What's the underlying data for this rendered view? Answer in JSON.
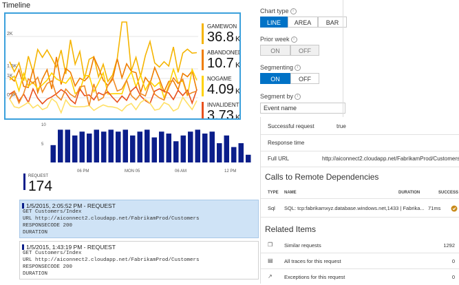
{
  "timeline": {
    "title": "Timeline",
    "y_ticks": [
      "2K",
      "1.5K",
      "1K",
      "0.5K"
    ],
    "legend": [
      {
        "name": "GAMEWON",
        "value": "36.8",
        "unit": "K",
        "color": "#f5b400"
      },
      {
        "name": "ABANDONED",
        "value": "10.7",
        "unit": "K",
        "color": "#ef7d00"
      },
      {
        "name": "NOGAME",
        "value": "4.09",
        "unit": "K",
        "color": "#ffd200"
      },
      {
        "name": "INVALIDENTR",
        "value": "3.73",
        "unit": "K",
        "color": "#e8501d"
      }
    ]
  },
  "options": {
    "chart_type": {
      "label": "Chart type",
      "buttons": [
        "LINE",
        "AREA",
        "BAR"
      ],
      "selected": "LINE"
    },
    "prior_week": {
      "label": "Prior week",
      "buttons": [
        "ON",
        "OFF"
      ]
    },
    "segmenting": {
      "label": "Segmenting",
      "buttons": [
        "ON",
        "OFF"
      ],
      "selected": "ON"
    },
    "segment_by": {
      "label": "Segment by",
      "value": "Event name"
    }
  },
  "request_chart": {
    "y_ticks": [
      "10",
      "5"
    ],
    "x_ticks": [
      "06 PM",
      "MON 05",
      "06 AM",
      "12 PM"
    ],
    "bar_color": "#0b1e8a",
    "values": [
      4.5,
      8.5,
      8.5,
      7.0,
      8.0,
      7.5,
      8.5,
      8.0,
      8.5,
      8.0,
      8.5,
      7.0,
      8.0,
      8.5,
      6.5,
      8.0,
      7.5,
      5.5,
      7.0,
      8.0,
      8.5,
      7.5,
      8.0,
      5.0,
      7.0,
      4.0,
      5.0,
      2.0
    ],
    "ylim": [
      0,
      10
    ]
  },
  "request_summary": {
    "label": "REQUEST",
    "count": "174"
  },
  "requests": [
    {
      "title": "1/5/2015, 2:05:52 PM - REQUEST",
      "lines": [
        "GET Customers/Index",
        "URL http://aiconnect2.cloudapp.net/FabrikamProd/Customers",
        "RESPONSECODE 200",
        "DURATION"
      ]
    },
    {
      "title": "1/5/2015, 1:43:19 PM - REQUEST",
      "lines": [
        "GET Customers/Index",
        "URL http://aiconnect2.cloudapp.net/FabrikamProd/Customers",
        "RESPONSECODE 200",
        "DURATION"
      ]
    }
  ],
  "details": {
    "properties": [
      {
        "key": "Successful request",
        "value": "true"
      },
      {
        "key": "Response time",
        "value": ""
      },
      {
        "key": "Full URL",
        "value": "http://aiconnect2.cloudapp.net/FabrikamProd/Customers"
      }
    ],
    "dependencies_title": "Calls to Remote Dependencies",
    "dependency_headers": [
      "TYPE",
      "NAME",
      "DURATION",
      "SUCCESS"
    ],
    "dependency_rows": [
      {
        "type": "Sql",
        "name": "SQL: tcp:fabrikamxyz.database.windows.net,1433 | Fabrika...",
        "duration": "71ms",
        "success": "warning"
      }
    ],
    "related_title": "Related Items",
    "related": [
      {
        "icon": "copy-icon",
        "label": "Similar requests",
        "count": "1292"
      },
      {
        "icon": "list-icon",
        "label": "All traces for this request",
        "count": "0"
      },
      {
        "icon": "arrow-icon",
        "label": "Exceptions for this request",
        "count": "0"
      }
    ]
  }
}
